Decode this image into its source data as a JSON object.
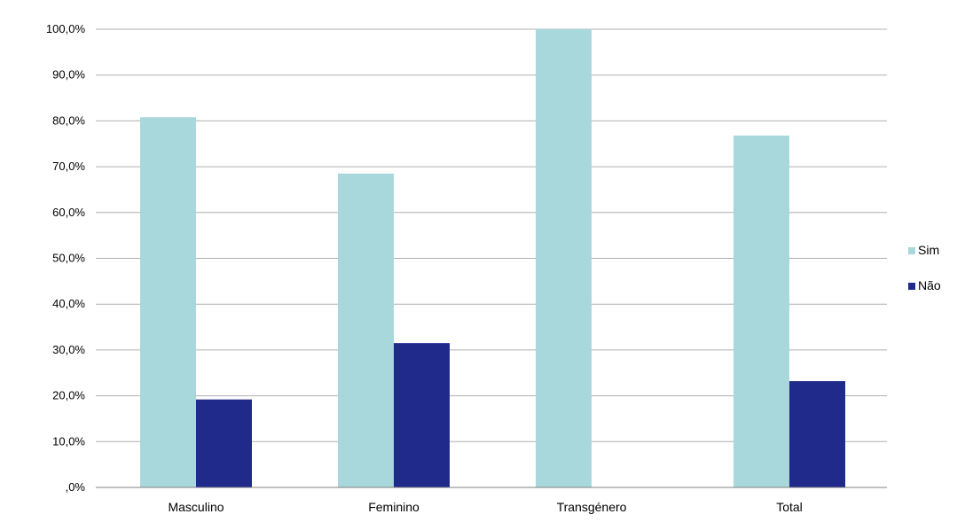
{
  "chart_data": {
    "type": "bar",
    "categories": [
      "Masculino",
      "Feminino",
      "Transgénero",
      "Total"
    ],
    "series": [
      {
        "name": "Sim",
        "values": [
          80.8,
          68.5,
          100.0,
          76.8
        ],
        "color": "#a8d8db"
      },
      {
        "name": "Não",
        "values": [
          19.2,
          31.5,
          0.0,
          23.2
        ],
        "color": "#1f2a8a"
      }
    ],
    "y_ticks": [
      ",0%",
      "10,0%",
      "20,0%",
      "30,0%",
      "40,0%",
      "50,0%",
      "60,0%",
      "70,0%",
      "80,0%",
      "90,0%",
      "100,0%"
    ],
    "ylim": [
      0,
      100
    ],
    "grid": true,
    "legend_position": "right",
    "gridline_color": "#b0b0b0",
    "axis_color": "#808080"
  }
}
